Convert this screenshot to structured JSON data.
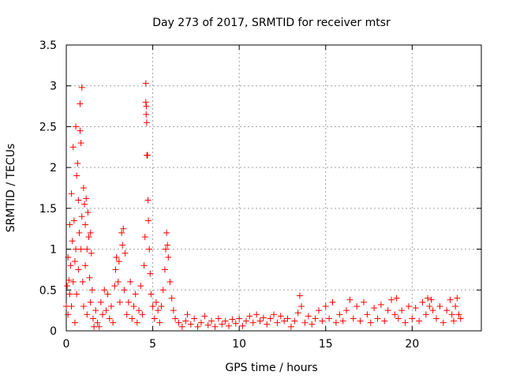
{
  "chart_data": {
    "type": "scatter",
    "title": "Day 273 of 2017, SRMTID for receiver mtsr",
    "xlabel": "GPS time / hours",
    "ylabel": "SRMTID / TECUs",
    "xlim": [
      0,
      24
    ],
    "ylim": [
      0,
      3.5
    ],
    "x_ticks": [
      0,
      5,
      10,
      15,
      20
    ],
    "x_tick_labels": [
      "0",
      "5",
      "10",
      "15",
      "20"
    ],
    "y_ticks": [
      0,
      0.5,
      1,
      1.5,
      2,
      2.5,
      3,
      3.5
    ],
    "y_tick_labels": [
      "0",
      "0.5",
      "1",
      "1.5",
      "2",
      "2.5",
      "3",
      "3.5"
    ],
    "grid": true,
    "marker": "+",
    "series": [
      {
        "name": "mtsr",
        "color": "#ff0000",
        "points": [
          [
            0.0,
            0.3
          ],
          [
            0.05,
            0.55
          ],
          [
            0.1,
            0.9
          ],
          [
            0.1,
            0.2
          ],
          [
            0.15,
            0.62
          ],
          [
            0.2,
            1.3
          ],
          [
            0.2,
            0.45
          ],
          [
            0.25,
            0.8
          ],
          [
            0.3,
            1.68
          ],
          [
            0.3,
            0.3
          ],
          [
            0.35,
            1.1
          ],
          [
            0.4,
            2.25
          ],
          [
            0.4,
            0.6
          ],
          [
            0.45,
            1.35
          ],
          [
            0.5,
            0.85
          ],
          [
            0.5,
            0.1
          ],
          [
            0.55,
            2.5
          ],
          [
            0.55,
            1.0
          ],
          [
            0.6,
            1.9
          ],
          [
            0.6,
            0.45
          ],
          [
            0.65,
            2.05
          ],
          [
            0.7,
            1.6
          ],
          [
            0.7,
            0.75
          ],
          [
            0.75,
            1.2
          ],
          [
            0.8,
            2.78
          ],
          [
            0.8,
            2.45
          ],
          [
            0.85,
            2.3
          ],
          [
            0.85,
            1.0
          ],
          [
            0.9,
            2.98
          ],
          [
            0.9,
            1.4
          ],
          [
            0.95,
            0.6
          ],
          [
            1.0,
            1.75
          ],
          [
            1.0,
            0.3
          ],
          [
            1.05,
            1.55
          ],
          [
            1.1,
            1.3
          ],
          [
            1.1,
            0.8
          ],
          [
            1.15,
            1.62
          ],
          [
            1.2,
            1.0
          ],
          [
            1.2,
            0.2
          ],
          [
            1.25,
            1.45
          ],
          [
            1.3,
            1.15
          ],
          [
            1.35,
            0.65
          ],
          [
            1.4,
            1.2
          ],
          [
            1.4,
            0.35
          ],
          [
            1.45,
            0.95
          ],
          [
            1.5,
            0.5
          ],
          [
            1.55,
            0.15
          ],
          [
            1.6,
            0.05
          ],
          [
            1.7,
            0.25
          ],
          [
            1.8,
            0.1
          ],
          [
            1.9,
            0.05
          ],
          [
            2.0,
            0.35
          ],
          [
            2.1,
            0.2
          ],
          [
            2.2,
            0.5
          ],
          [
            2.3,
            0.25
          ],
          [
            2.4,
            0.45
          ],
          [
            2.5,
            0.15
          ],
          [
            2.6,
            0.3
          ],
          [
            2.7,
            0.1
          ],
          [
            2.8,
            0.55
          ],
          [
            2.85,
            0.75
          ],
          [
            2.9,
            0.9
          ],
          [
            3.0,
            0.6
          ],
          [
            3.05,
            0.85
          ],
          [
            3.1,
            0.35
          ],
          [
            3.2,
            1.2
          ],
          [
            3.25,
            1.05
          ],
          [
            3.3,
            1.25
          ],
          [
            3.35,
            0.5
          ],
          [
            3.4,
            0.95
          ],
          [
            3.5,
            0.2
          ],
          [
            3.6,
            0.35
          ],
          [
            3.7,
            0.6
          ],
          [
            3.8,
            0.15
          ],
          [
            3.9,
            0.3
          ],
          [
            4.0,
            0.45
          ],
          [
            4.1,
            0.1
          ],
          [
            4.2,
            0.25
          ],
          [
            4.3,
            0.55
          ],
          [
            4.4,
            0.2
          ],
          [
            4.5,
            0.8
          ],
          [
            4.55,
            1.15
          ],
          [
            4.6,
            3.03
          ],
          [
            4.6,
            2.8
          ],
          [
            4.62,
            2.65
          ],
          [
            4.63,
            2.75
          ],
          [
            4.65,
            2.55
          ],
          [
            4.66,
            2.15
          ],
          [
            4.7,
            2.15
          ],
          [
            4.72,
            1.6
          ],
          [
            4.75,
            1.35
          ],
          [
            4.8,
            1.0
          ],
          [
            4.85,
            0.7
          ],
          [
            4.9,
            0.45
          ],
          [
            5.0,
            0.3
          ],
          [
            5.1,
            0.15
          ],
          [
            5.2,
            0.35
          ],
          [
            5.3,
            0.25
          ],
          [
            5.4,
            0.1
          ],
          [
            5.5,
            0.3
          ],
          [
            5.6,
            0.5
          ],
          [
            5.7,
            0.75
          ],
          [
            5.75,
            1.0
          ],
          [
            5.8,
            1.2
          ],
          [
            5.85,
            1.05
          ],
          [
            5.9,
            0.9
          ],
          [
            6.0,
            0.6
          ],
          [
            6.1,
            0.4
          ],
          [
            6.2,
            0.25
          ],
          [
            6.3,
            0.15
          ],
          [
            6.5,
            0.1
          ],
          [
            6.7,
            0.05
          ],
          [
            6.9,
            0.12
          ],
          [
            7.0,
            0.2
          ],
          [
            7.2,
            0.08
          ],
          [
            7.4,
            0.15
          ],
          [
            7.6,
            0.05
          ],
          [
            7.8,
            0.1
          ],
          [
            8.0,
            0.18
          ],
          [
            8.2,
            0.07
          ],
          [
            8.4,
            0.12
          ],
          [
            8.6,
            0.05
          ],
          [
            8.8,
            0.15
          ],
          [
            9.0,
            0.08
          ],
          [
            9.2,
            0.12
          ],
          [
            9.4,
            0.06
          ],
          [
            9.6,
            0.14
          ],
          [
            9.8,
            0.09
          ],
          [
            10.0,
            0.15
          ],
          [
            10.2,
            0.06
          ],
          [
            10.4,
            0.12
          ],
          [
            10.6,
            0.18
          ],
          [
            10.8,
            0.1
          ],
          [
            11.0,
            0.2
          ],
          [
            11.2,
            0.12
          ],
          [
            11.4,
            0.16
          ],
          [
            11.6,
            0.08
          ],
          [
            11.8,
            0.15
          ],
          [
            12.0,
            0.2
          ],
          [
            12.2,
            0.1
          ],
          [
            12.4,
            0.18
          ],
          [
            12.6,
            0.12
          ],
          [
            12.8,
            0.15
          ],
          [
            13.0,
            0.05
          ],
          [
            13.2,
            0.12
          ],
          [
            13.4,
            0.22
          ],
          [
            13.5,
            0.43
          ],
          [
            13.6,
            0.3
          ],
          [
            13.8,
            0.1
          ],
          [
            14.0,
            0.18
          ],
          [
            14.2,
            0.08
          ],
          [
            14.4,
            0.15
          ],
          [
            14.6,
            0.25
          ],
          [
            14.8,
            0.12
          ],
          [
            15.0,
            0.3
          ],
          [
            15.2,
            0.15
          ],
          [
            15.4,
            0.35
          ],
          [
            15.6,
            0.1
          ],
          [
            15.8,
            0.2
          ],
          [
            16.0,
            0.12
          ],
          [
            16.2,
            0.25
          ],
          [
            16.4,
            0.38
          ],
          [
            16.6,
            0.15
          ],
          [
            16.8,
            0.3
          ],
          [
            17.0,
            0.12
          ],
          [
            17.2,
            0.35
          ],
          [
            17.4,
            0.2
          ],
          [
            17.6,
            0.1
          ],
          [
            17.8,
            0.28
          ],
          [
            18.0,
            0.15
          ],
          [
            18.2,
            0.32
          ],
          [
            18.4,
            0.12
          ],
          [
            18.6,
            0.25
          ],
          [
            18.8,
            0.38
          ],
          [
            19.0,
            0.2
          ],
          [
            19.1,
            0.4
          ],
          [
            19.2,
            0.15
          ],
          [
            19.4,
            0.25
          ],
          [
            19.6,
            0.1
          ],
          [
            19.8,
            0.3
          ],
          [
            20.0,
            0.15
          ],
          [
            20.2,
            0.28
          ],
          [
            20.4,
            0.12
          ],
          [
            20.6,
            0.35
          ],
          [
            20.8,
            0.2
          ],
          [
            20.9,
            0.4
          ],
          [
            21.0,
            0.3
          ],
          [
            21.1,
            0.38
          ],
          [
            21.2,
            0.25
          ],
          [
            21.4,
            0.15
          ],
          [
            21.6,
            0.3
          ],
          [
            21.8,
            0.1
          ],
          [
            22.0,
            0.25
          ],
          [
            22.2,
            0.38
          ],
          [
            22.3,
            0.2
          ],
          [
            22.4,
            0.12
          ],
          [
            22.5,
            0.3
          ],
          [
            22.6,
            0.4
          ],
          [
            22.7,
            0.2
          ],
          [
            22.8,
            0.15
          ]
        ]
      }
    ]
  }
}
